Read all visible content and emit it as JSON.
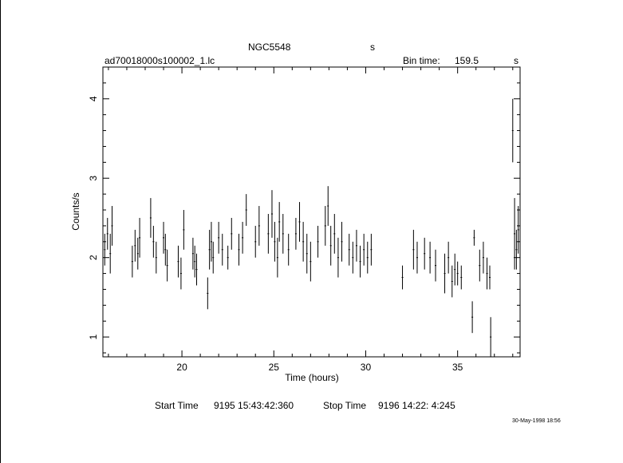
{
  "header": {
    "object_name": "NGC5548",
    "units_mark": "s",
    "file_name": "ad70018000s100002_1.lc",
    "bin_time_label": "Bin time:",
    "bin_time_value": "159.5",
    "bin_time_units": "s"
  },
  "footer": {
    "start_label": "Start Time",
    "start_value": "9195 15:43:42:360",
    "stop_label": "Stop Time",
    "stop_value": "9196 14:22: 4:245",
    "date_stamp": "30-May-1998 18:56"
  },
  "chart_data": {
    "type": "scatter",
    "style": "error-bars",
    "xlabel": "Time (hours)",
    "ylabel": "Counts/s",
    "xlim": [
      15.7,
      38.4
    ],
    "ylim": [
      0.75,
      4.4
    ],
    "xticks": [
      20,
      25,
      30,
      35
    ],
    "yticks": [
      1,
      2,
      3,
      4
    ],
    "grid": false,
    "color": "#000000",
    "series": [
      {
        "points": [
          [
            15.8,
            2.1,
            0.2
          ],
          [
            15.95,
            2.3,
            0.2
          ],
          [
            16.1,
            2.05,
            0.25
          ],
          [
            16.2,
            2.4,
            0.25
          ],
          [
            17.3,
            1.95,
            0.2
          ],
          [
            17.45,
            2.15,
            0.2
          ],
          [
            17.6,
            2.05,
            0.2
          ],
          [
            17.7,
            2.25,
            0.25
          ],
          [
            18.3,
            2.5,
            0.25
          ],
          [
            18.45,
            2.2,
            0.2
          ],
          [
            18.6,
            2.0,
            0.2
          ],
          [
            19.0,
            2.25,
            0.2
          ],
          [
            19.1,
            2.1,
            0.2
          ],
          [
            19.2,
            1.9,
            0.2
          ],
          [
            19.8,
            1.95,
            0.2
          ],
          [
            19.95,
            1.8,
            0.2
          ],
          [
            20.1,
            2.35,
            0.25
          ],
          [
            20.6,
            2.05,
            0.2
          ],
          [
            20.7,
            1.95,
            0.2
          ],
          [
            20.8,
            1.85,
            0.2
          ],
          [
            21.4,
            1.55,
            0.2
          ],
          [
            21.5,
            2.1,
            0.25
          ],
          [
            21.6,
            2.2,
            0.25
          ],
          [
            21.7,
            2.0,
            0.2
          ],
          [
            22.0,
            2.25,
            0.2
          ],
          [
            22.2,
            2.1,
            0.2
          ],
          [
            22.5,
            2.0,
            0.15
          ],
          [
            22.7,
            2.3,
            0.2
          ],
          [
            23.1,
            2.1,
            0.2
          ],
          [
            23.3,
            2.25,
            0.2
          ],
          [
            23.5,
            2.6,
            0.2
          ],
          [
            24.0,
            2.2,
            0.2
          ],
          [
            24.2,
            2.4,
            0.25
          ],
          [
            24.7,
            2.3,
            0.25
          ],
          [
            24.9,
            2.55,
            0.3
          ],
          [
            25.05,
            2.2,
            0.25
          ],
          [
            25.2,
            2.0,
            0.25
          ],
          [
            25.3,
            2.45,
            0.25
          ],
          [
            25.5,
            2.3,
            0.25
          ],
          [
            25.8,
            2.1,
            0.2
          ],
          [
            26.2,
            2.3,
            0.2
          ],
          [
            26.4,
            2.45,
            0.25
          ],
          [
            26.6,
            2.2,
            0.25
          ],
          [
            26.8,
            2.05,
            0.25
          ],
          [
            27.0,
            1.95,
            0.25
          ],
          [
            27.4,
            2.2,
            0.2
          ],
          [
            27.8,
            2.4,
            0.25
          ],
          [
            27.95,
            2.65,
            0.25
          ],
          [
            28.1,
            2.15,
            0.25
          ],
          [
            28.3,
            2.3,
            0.25
          ],
          [
            28.5,
            2.0,
            0.25
          ],
          [
            28.7,
            2.2,
            0.25
          ],
          [
            29.1,
            2.1,
            0.2
          ],
          [
            29.3,
            2.0,
            0.2
          ],
          [
            29.5,
            2.15,
            0.2
          ],
          [
            29.7,
            1.95,
            0.2
          ],
          [
            29.9,
            2.1,
            0.2
          ],
          [
            30.1,
            2.0,
            0.2
          ],
          [
            30.3,
            2.1,
            0.2
          ],
          [
            32.0,
            1.75,
            0.15
          ],
          [
            32.6,
            2.1,
            0.25
          ],
          [
            32.8,
            2.0,
            0.2
          ],
          [
            33.2,
            2.05,
            0.2
          ],
          [
            33.5,
            2.0,
            0.2
          ],
          [
            33.8,
            1.9,
            0.2
          ],
          [
            34.3,
            1.8,
            0.25
          ],
          [
            34.5,
            2.0,
            0.2
          ],
          [
            34.7,
            1.7,
            0.2
          ],
          [
            34.85,
            1.85,
            0.2
          ],
          [
            35.0,
            1.8,
            0.15
          ],
          [
            35.2,
            1.75,
            0.15
          ],
          [
            35.8,
            1.25,
            0.2
          ],
          [
            35.9,
            2.25,
            0.1
          ],
          [
            36.2,
            1.9,
            0.2
          ],
          [
            36.4,
            2.0,
            0.2
          ],
          [
            36.6,
            1.8,
            0.2
          ],
          [
            36.75,
            1.75,
            0.15
          ],
          [
            36.8,
            1.0,
            0.25
          ],
          [
            38.0,
            3.6,
            0.4
          ],
          [
            38.1,
            2.3,
            0.45
          ],
          [
            38.2,
            2.1,
            0.25
          ],
          [
            38.3,
            2.35,
            0.3
          ]
        ]
      }
    ]
  }
}
